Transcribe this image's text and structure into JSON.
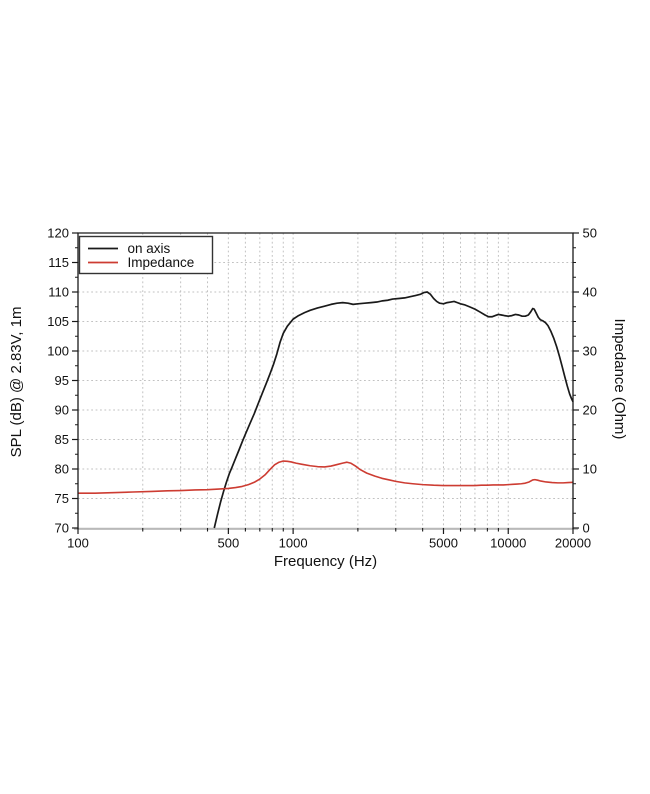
{
  "page": {
    "background": "#ffffff"
  },
  "chart_data": {
    "type": "line",
    "x_axis": {
      "label": "Frequency (Hz)",
      "scale": "log",
      "min": 100,
      "max": 20000,
      "major_ticks": [
        100,
        500,
        1000,
        5000,
        10000,
        20000
      ],
      "tick_labels": [
        "100",
        "500",
        "1000",
        "5000",
        "10000",
        "20000"
      ],
      "gridline_freqs": [
        200,
        300,
        400,
        500,
        600,
        700,
        800,
        900,
        1000,
        2000,
        3000,
        4000,
        5000,
        6000,
        7000,
        8000,
        9000,
        10000,
        20000
      ]
    },
    "y_left": {
      "label": "SPL (dB) @ 2.83V, 1m",
      "min": 70,
      "max": 120,
      "major_step": 5,
      "minor_step": 2.5,
      "ticks": [
        70,
        75,
        80,
        85,
        90,
        95,
        100,
        105,
        110,
        115,
        120
      ]
    },
    "y_right": {
      "label": "Impedance (Ohm)",
      "min": 0,
      "max": 50,
      "major_step": 10,
      "minor_step": 2.5,
      "ticks": [
        0,
        10,
        20,
        30,
        40,
        50
      ]
    },
    "grid": true,
    "legend": {
      "position": "top-left",
      "items": [
        {
          "label": "on axis",
          "color": "#1a1a1a"
        },
        {
          "label": "Impedance",
          "color": "#cd3c32"
        }
      ]
    },
    "colors": {
      "grid": "#c2c2c2",
      "axis": "#1a1a1a",
      "bottom_axis": "#b9b9b9",
      "text": "#111111",
      "legend_border": "#333333",
      "background": "#ffffff"
    },
    "series": [
      {
        "name": "on axis",
        "color": "#1a1a1a",
        "axis": "left",
        "unit": "dB",
        "points": [
          [
            430,
            70
          ],
          [
            445,
            72.3
          ],
          [
            460,
            74.4
          ],
          [
            475,
            76.2
          ],
          [
            490,
            77.8
          ],
          [
            505,
            79.2
          ],
          [
            520,
            80.3
          ],
          [
            540,
            81.8
          ],
          [
            560,
            83.2
          ],
          [
            580,
            84.6
          ],
          [
            600,
            85.9
          ],
          [
            630,
            87.7
          ],
          [
            660,
            89.4
          ],
          [
            690,
            91.2
          ],
          [
            720,
            92.9
          ],
          [
            750,
            94.5
          ],
          [
            780,
            96.1
          ],
          [
            810,
            97.7
          ],
          [
            840,
            99.5
          ],
          [
            870,
            101.5
          ],
          [
            900,
            103.0
          ],
          [
            940,
            104.2
          ],
          [
            1000,
            105.4
          ],
          [
            1060,
            106.0
          ],
          [
            1130,
            106.5
          ],
          [
            1200,
            106.9
          ],
          [
            1300,
            107.3
          ],
          [
            1400,
            107.6
          ],
          [
            1500,
            107.9
          ],
          [
            1600,
            108.1
          ],
          [
            1700,
            108.2
          ],
          [
            1800,
            108.1
          ],
          [
            1900,
            107.9
          ],
          [
            2000,
            108.0
          ],
          [
            2150,
            108.1
          ],
          [
            2300,
            108.2
          ],
          [
            2450,
            108.3
          ],
          [
            2600,
            108.5
          ],
          [
            2750,
            108.6
          ],
          [
            2900,
            108.8
          ],
          [
            3100,
            108.9
          ],
          [
            3300,
            109.0
          ],
          [
            3500,
            109.2
          ],
          [
            3700,
            109.4
          ],
          [
            3900,
            109.6
          ],
          [
            4050,
            109.9
          ],
          [
            4200,
            110.0
          ],
          [
            4350,
            109.6
          ],
          [
            4500,
            108.9
          ],
          [
            4650,
            108.4
          ],
          [
            4800,
            108.1
          ],
          [
            5000,
            108.0
          ],
          [
            5200,
            108.2
          ],
          [
            5400,
            108.3
          ],
          [
            5600,
            108.4
          ],
          [
            5800,
            108.2
          ],
          [
            6000,
            108.0
          ],
          [
            6300,
            107.8
          ],
          [
            6600,
            107.5
          ],
          [
            7000,
            107.1
          ],
          [
            7400,
            106.6
          ],
          [
            7800,
            106.1
          ],
          [
            8100,
            105.8
          ],
          [
            8400,
            105.8
          ],
          [
            8700,
            106.0
          ],
          [
            9000,
            106.2
          ],
          [
            9300,
            106.1
          ],
          [
            9600,
            106.0
          ],
          [
            10000,
            105.9
          ],
          [
            10400,
            106.0
          ],
          [
            10800,
            106.2
          ],
          [
            11200,
            106.1
          ],
          [
            11600,
            105.9
          ],
          [
            12000,
            105.9
          ],
          [
            12400,
            106.1
          ],
          [
            12700,
            106.6
          ],
          [
            13000,
            107.2
          ],
          [
            13200,
            107.1
          ],
          [
            13500,
            106.4
          ],
          [
            13800,
            105.7
          ],
          [
            14100,
            105.3
          ],
          [
            14500,
            105.1
          ],
          [
            14900,
            104.8
          ],
          [
            15300,
            104.3
          ],
          [
            15800,
            103.3
          ],
          [
            16300,
            102.1
          ],
          [
            16800,
            100.7
          ],
          [
            17300,
            99.1
          ],
          [
            17800,
            97.4
          ],
          [
            18300,
            95.7
          ],
          [
            18800,
            94.1
          ],
          [
            19300,
            92.7
          ],
          [
            19700,
            91.9
          ],
          [
            20000,
            91.4
          ]
        ]
      },
      {
        "name": "Impedance",
        "color": "#cd3c32",
        "axis": "right",
        "unit": "Ohm",
        "points": [
          [
            100,
            5.9
          ],
          [
            120,
            5.9
          ],
          [
            150,
            6.0
          ],
          [
            180,
            6.1
          ],
          [
            220,
            6.2
          ],
          [
            260,
            6.3
          ],
          [
            300,
            6.35
          ],
          [
            350,
            6.45
          ],
          [
            400,
            6.5
          ],
          [
            450,
            6.6
          ],
          [
            500,
            6.7
          ],
          [
            540,
            6.85
          ],
          [
            580,
            7.05
          ],
          [
            620,
            7.35
          ],
          [
            660,
            7.75
          ],
          [
            700,
            8.3
          ],
          [
            740,
            9.0
          ],
          [
            780,
            9.9
          ],
          [
            820,
            10.7
          ],
          [
            860,
            11.15
          ],
          [
            900,
            11.35
          ],
          [
            940,
            11.3
          ],
          [
            980,
            11.2
          ],
          [
            1030,
            11.0
          ],
          [
            1100,
            10.8
          ],
          [
            1200,
            10.55
          ],
          [
            1300,
            10.4
          ],
          [
            1400,
            10.35
          ],
          [
            1500,
            10.5
          ],
          [
            1600,
            10.75
          ],
          [
            1700,
            11.0
          ],
          [
            1780,
            11.15
          ],
          [
            1850,
            11.0
          ],
          [
            1950,
            10.5
          ],
          [
            2050,
            9.9
          ],
          [
            2200,
            9.3
          ],
          [
            2400,
            8.8
          ],
          [
            2600,
            8.4
          ],
          [
            2800,
            8.15
          ],
          [
            3000,
            7.9
          ],
          [
            3300,
            7.65
          ],
          [
            3600,
            7.5
          ],
          [
            4000,
            7.35
          ],
          [
            4500,
            7.25
          ],
          [
            5000,
            7.2
          ],
          [
            5500,
            7.2
          ],
          [
            6000,
            7.2
          ],
          [
            6500,
            7.2
          ],
          [
            7000,
            7.2
          ],
          [
            7500,
            7.25
          ],
          [
            8000,
            7.25
          ],
          [
            8500,
            7.3
          ],
          [
            9000,
            7.3
          ],
          [
            9500,
            7.3
          ],
          [
            10000,
            7.35
          ],
          [
            10500,
            7.4
          ],
          [
            11000,
            7.45
          ],
          [
            11500,
            7.5
          ],
          [
            12000,
            7.6
          ],
          [
            12500,
            7.8
          ],
          [
            13000,
            8.15
          ],
          [
            13300,
            8.2
          ],
          [
            13700,
            8.1
          ],
          [
            14200,
            7.95
          ],
          [
            15000,
            7.8
          ],
          [
            16000,
            7.7
          ],
          [
            17000,
            7.65
          ],
          [
            18000,
            7.65
          ],
          [
            19000,
            7.7
          ],
          [
            20000,
            7.75
          ]
        ]
      }
    ]
  }
}
